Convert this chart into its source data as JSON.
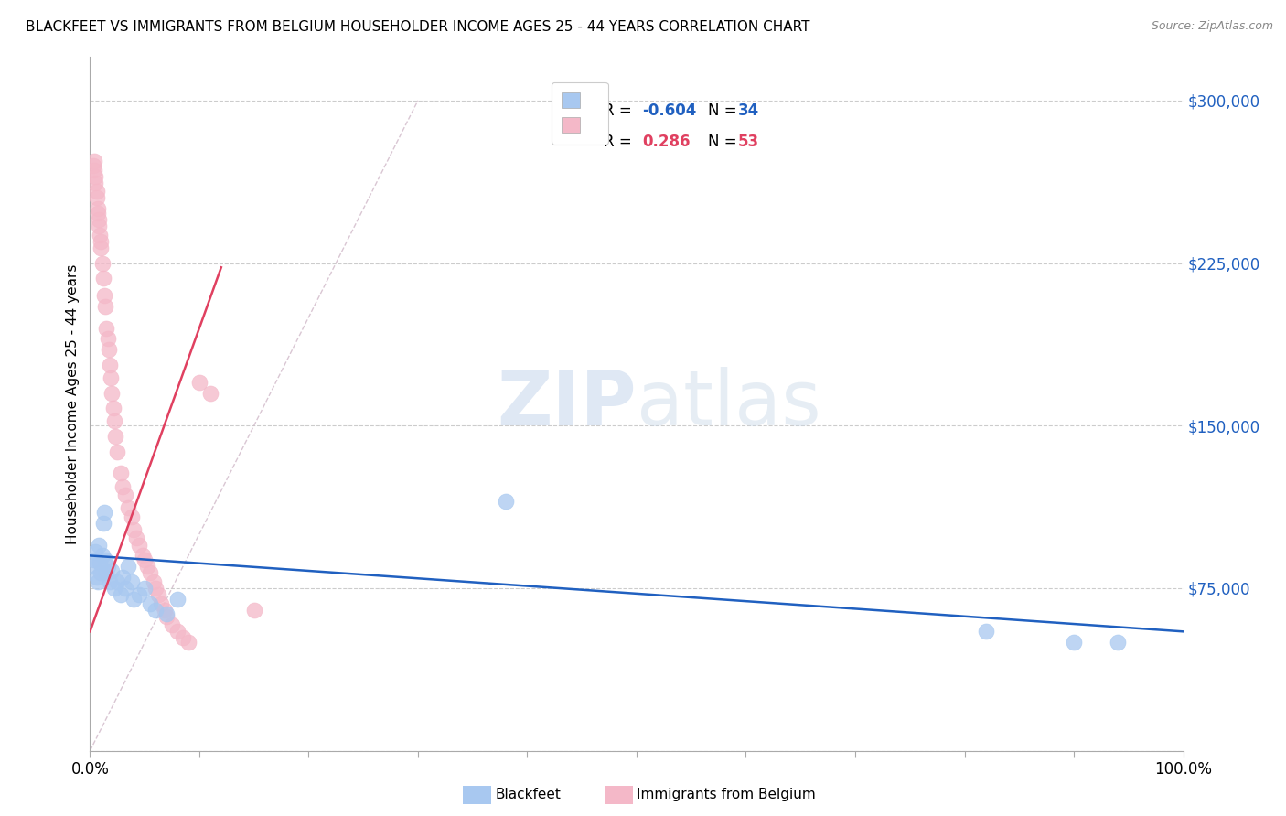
{
  "title": "BLACKFEET VS IMMIGRANTS FROM BELGIUM HOUSEHOLDER INCOME AGES 25 - 44 YEARS CORRELATION CHART",
  "source": "Source: ZipAtlas.com",
  "ylabel": "Householder Income Ages 25 - 44 years",
  "yticks": [
    0,
    75000,
    150000,
    225000,
    300000
  ],
  "ytick_labels": [
    "",
    "$75,000",
    "$150,000",
    "$225,000",
    "$300,000"
  ],
  "xmin": 0.0,
  "xmax": 1.0,
  "ymin": 0,
  "ymax": 320000,
  "watermark_zip": "ZIP",
  "watermark_atlas": "atlas",
  "blue_color": "#a8c8f0",
  "pink_color": "#f4b8c8",
  "blue_line_color": "#2060c0",
  "pink_line_color": "#e04060",
  "diag_color": "#d0b8c8",
  "grid_color": "#cccccc",
  "background_color": "#ffffff",
  "blackfeet_x": [
    0.003,
    0.004,
    0.005,
    0.006,
    0.007,
    0.008,
    0.009,
    0.01,
    0.011,
    0.012,
    0.013,
    0.014,
    0.015,
    0.016,
    0.018,
    0.02,
    0.022,
    0.025,
    0.028,
    0.03,
    0.032,
    0.035,
    0.038,
    0.04,
    0.045,
    0.05,
    0.055,
    0.06,
    0.07,
    0.08,
    0.38,
    0.82,
    0.9,
    0.94
  ],
  "blackfeet_y": [
    85000,
    88000,
    92000,
    80000,
    78000,
    95000,
    87000,
    82000,
    90000,
    105000,
    110000,
    88000,
    82000,
    85000,
    78000,
    83000,
    75000,
    78000,
    72000,
    80000,
    75000,
    85000,
    78000,
    70000,
    72000,
    75000,
    68000,
    65000,
    63000,
    70000,
    115000,
    55000,
    50000,
    50000
  ],
  "belgium_x": [
    0.003,
    0.004,
    0.004,
    0.005,
    0.005,
    0.006,
    0.006,
    0.007,
    0.007,
    0.008,
    0.008,
    0.009,
    0.01,
    0.01,
    0.011,
    0.012,
    0.013,
    0.014,
    0.015,
    0.016,
    0.017,
    0.018,
    0.019,
    0.02,
    0.021,
    0.022,
    0.023,
    0.025,
    0.028,
    0.03,
    0.032,
    0.035,
    0.038,
    0.04,
    0.042,
    0.045,
    0.048,
    0.05,
    0.052,
    0.055,
    0.058,
    0.06,
    0.062,
    0.065,
    0.068,
    0.07,
    0.075,
    0.08,
    0.085,
    0.09,
    0.1,
    0.11,
    0.15
  ],
  "belgium_y": [
    270000,
    268000,
    272000,
    262000,
    265000,
    255000,
    258000,
    248000,
    250000,
    242000,
    245000,
    238000,
    232000,
    235000,
    225000,
    218000,
    210000,
    205000,
    195000,
    190000,
    185000,
    178000,
    172000,
    165000,
    158000,
    152000,
    145000,
    138000,
    128000,
    122000,
    118000,
    112000,
    108000,
    102000,
    98000,
    95000,
    90000,
    88000,
    85000,
    82000,
    78000,
    75000,
    72000,
    68000,
    65000,
    62000,
    58000,
    55000,
    52000,
    50000,
    170000,
    165000,
    65000
  ],
  "xtick_positions": [
    0.0,
    0.1,
    0.2,
    0.3,
    0.4,
    0.5,
    0.6,
    0.7,
    0.8,
    0.9,
    1.0
  ],
  "blue_R": "-0.604",
  "blue_N": "34",
  "pink_R": "0.286",
  "pink_N": "53"
}
